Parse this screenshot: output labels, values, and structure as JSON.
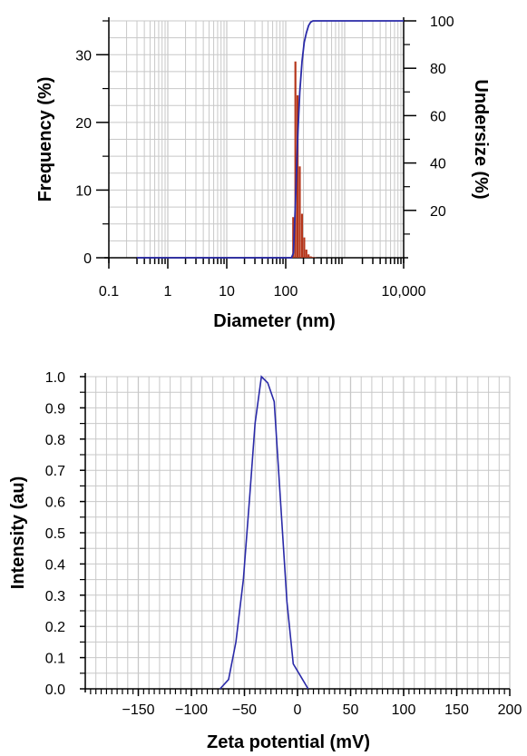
{
  "chart_data": [
    {
      "type": "bar",
      "xlabel": "Diameter (nm)",
      "ylabel": "Frequency (%)",
      "y2label": "Undersize (%)",
      "xscale": "log",
      "xlim": [
        0.1,
        10000
      ],
      "ylim": [
        0,
        35
      ],
      "y2lim": [
        0,
        100
      ],
      "grid": true,
      "x_ticks": [
        {
          "value": 0.1,
          "label": "0.1"
        },
        {
          "value": 1,
          "label": "1"
        },
        {
          "value": 10,
          "label": "10"
        },
        {
          "value": 100,
          "label": "100"
        },
        {
          "value": 10000,
          "label": "10,000"
        }
      ],
      "y_ticks": [
        {
          "value": 0,
          "label": "0"
        },
        {
          "value": 10,
          "label": "10"
        },
        {
          "value": 20,
          "label": "20"
        },
        {
          "value": 30,
          "label": "30"
        }
      ],
      "y2_ticks": [
        {
          "value": 20,
          "label": "20"
        },
        {
          "value": 40,
          "label": "40"
        },
        {
          "value": 60,
          "label": "60"
        },
        {
          "value": 80,
          "label": "80"
        },
        {
          "value": 100,
          "label": "100"
        }
      ],
      "bars": {
        "color": "#b5361b",
        "x": [
          134,
          146,
          159,
          173,
          189,
          206,
          224,
          244,
          266,
          290,
          316
        ],
        "values": [
          6,
          29,
          24,
          13.5,
          6.5,
          3,
          1.2,
          0.5,
          0.2,
          0.1,
          0.05
        ]
      },
      "undersize_curve": {
        "color": "#2a2aa8",
        "x": [
          0.3,
          100,
          125,
          135,
          146,
          159,
          173,
          189,
          206,
          224,
          244,
          266,
          290,
          10000
        ],
        "values": [
          0,
          0,
          0,
          2,
          23,
          50,
          70,
          83,
          91,
          95,
          98,
          99.5,
          100,
          100
        ]
      }
    },
    {
      "type": "line",
      "xlabel": "Zeta potential (mV)",
      "ylabel": "Intensity (au)",
      "xlim": [
        -200,
        200
      ],
      "ylim": [
        0,
        1
      ],
      "grid": true,
      "x_ticks": [
        {
          "value": -150,
          "label": "−150"
        },
        {
          "value": -100,
          "label": "−100"
        },
        {
          "value": -50,
          "label": "−50"
        },
        {
          "value": 0,
          "label": "0"
        },
        {
          "value": 50,
          "label": "50"
        },
        {
          "value": 100,
          "label": "100"
        },
        {
          "value": 150,
          "label": "150"
        },
        {
          "value": 200,
          "label": "200"
        }
      ],
      "y_ticks": [
        {
          "value": 0,
          "label": "0.0"
        },
        {
          "value": 0.1,
          "label": "0.1"
        },
        {
          "value": 0.2,
          "label": "0.2"
        },
        {
          "value": 0.3,
          "label": "0.3"
        },
        {
          "value": 0.4,
          "label": "0.4"
        },
        {
          "value": 0.5,
          "label": "0.5"
        },
        {
          "value": 0.6,
          "label": "0.6"
        },
        {
          "value": 0.7,
          "label": "0.7"
        },
        {
          "value": 0.8,
          "label": "0.8"
        },
        {
          "value": 0.9,
          "label": "0.9"
        },
        {
          "value": 1.0,
          "label": "1.0"
        }
      ],
      "series": [
        {
          "color": "#2a2aa8",
          "x": [
            -73,
            -65,
            -58,
            -51,
            -45,
            -40,
            -34,
            -28,
            -22,
            -16,
            -10,
            -4,
            3,
            10
          ],
          "values": [
            0.0,
            0.03,
            0.15,
            0.35,
            0.62,
            0.85,
            1.0,
            0.98,
            0.92,
            0.6,
            0.28,
            0.08,
            0.04,
            0.0
          ]
        }
      ]
    }
  ]
}
